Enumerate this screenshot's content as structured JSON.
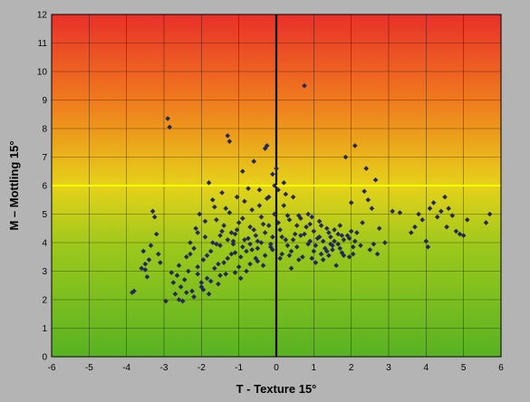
{
  "chart_data": {
    "type": "scatter",
    "xlabel": "T - Texture 15°",
    "ylabel": "M – Mottling 15°",
    "xlim": [
      -6,
      6
    ],
    "ylim": [
      0,
      12
    ],
    "x_ticks": [
      "-6",
      "-5",
      "-4",
      "-3",
      "-2",
      "-1",
      "0",
      "1",
      "2",
      "3",
      "4",
      "5",
      "6"
    ],
    "y_ticks": [
      "0",
      "1",
      "2",
      "3",
      "4",
      "5",
      "6",
      "7",
      "8",
      "9",
      "10",
      "11",
      "12"
    ],
    "grid": true,
    "threshold_line": {
      "axis": "y",
      "value": 6,
      "color": "#ffff00"
    },
    "vertical_line": {
      "axis": "x",
      "value": 0,
      "color": "#000000"
    },
    "background_gradient": [
      "#e8302a",
      "#f07a1e",
      "#e6d21a",
      "#9cc81c",
      "#58b223"
    ],
    "marker": {
      "shape": "diamond",
      "color": "#22285a"
    },
    "series": [
      {
        "points": [
          [
            -3.85,
            2.25
          ],
          [
            -3.8,
            2.3
          ],
          [
            -3.6,
            3.1
          ],
          [
            -3.55,
            3.7
          ],
          [
            -3.5,
            3.25
          ],
          [
            -3.45,
            2.8
          ],
          [
            -3.4,
            3.4
          ],
          [
            -3.35,
            3.9
          ],
          [
            -3.3,
            5.1
          ],
          [
            -3.25,
            4.9
          ],
          [
            -3.2,
            4.3
          ],
          [
            -3.15,
            3.6
          ],
          [
            -3.1,
            3.3
          ],
          [
            -3.5,
            3.05
          ],
          [
            -2.9,
            8.35
          ],
          [
            -2.85,
            8.05
          ],
          [
            -2.95,
            1.95
          ],
          [
            -2.8,
            2.95
          ],
          [
            -2.75,
            2.6
          ],
          [
            -2.7,
            2.2
          ],
          [
            -2.65,
            2.85
          ],
          [
            -2.6,
            3.2
          ],
          [
            -2.55,
            2.45
          ],
          [
            -2.5,
            1.95
          ],
          [
            -2.45,
            2.7
          ],
          [
            -2.4,
            3.5
          ],
          [
            -2.35,
            3.0
          ],
          [
            -2.3,
            4.0
          ],
          [
            -2.25,
            2.3
          ],
          [
            -2.2,
            3.8
          ],
          [
            -2.15,
            4.5
          ],
          [
            -2.1,
            2.9
          ],
          [
            -2.05,
            5.0
          ],
          [
            -2.0,
            2.6
          ],
          [
            -1.95,
            3.4
          ],
          [
            -1.9,
            4.2
          ],
          [
            -1.85,
            2.75
          ],
          [
            -1.8,
            6.1
          ],
          [
            -1.75,
            3.7
          ],
          [
            -1.7,
            5.5
          ],
          [
            -1.65,
            3.1
          ],
          [
            -1.6,
            4.8
          ],
          [
            -1.55,
            2.55
          ],
          [
            -1.5,
            3.9
          ],
          [
            -1.45,
            4.4
          ],
          [
            -1.4,
            3.3
          ],
          [
            -1.35,
            5.2
          ],
          [
            -1.3,
            7.75
          ],
          [
            -1.25,
            7.55
          ],
          [
            -1.2,
            3.6
          ],
          [
            -1.15,
            4.05
          ],
          [
            -1.1,
            2.95
          ],
          [
            -1.05,
            5.6
          ],
          [
            -1.0,
            4.7
          ],
          [
            -0.95,
            3.5
          ],
          [
            -0.9,
            6.5
          ],
          [
            -0.85,
            4.1
          ],
          [
            -0.8,
            3.0
          ],
          [
            -0.75,
            5.9
          ],
          [
            -0.7,
            4.55
          ],
          [
            -0.65,
            3.75
          ],
          [
            -0.6,
            6.85
          ],
          [
            -0.55,
            4.25
          ],
          [
            -0.5,
            3.35
          ],
          [
            -0.45,
            5.3
          ],
          [
            -0.4,
            4.0
          ],
          [
            -0.35,
            3.2
          ],
          [
            -0.3,
            7.3
          ],
          [
            -0.25,
            7.4
          ],
          [
            -0.2,
            4.6
          ],
          [
            -0.15,
            3.85
          ],
          [
            -0.1,
            6.4
          ],
          [
            -0.05,
            5.0
          ],
          [
            -2.1,
            3.15
          ],
          [
            -1.95,
            2.35
          ],
          [
            -1.85,
            3.55
          ],
          [
            -1.6,
            3.95
          ],
          [
            -1.5,
            2.85
          ],
          [
            -1.4,
            4.6
          ],
          [
            -1.3,
            3.45
          ],
          [
            -1.2,
            4.35
          ],
          [
            -1.1,
            3.65
          ],
          [
            -1.0,
            3.15
          ],
          [
            -0.9,
            4.85
          ],
          [
            -0.8,
            3.7
          ],
          [
            -0.7,
            3.25
          ],
          [
            -0.6,
            4.45
          ],
          [
            -0.5,
            3.8
          ],
          [
            -0.4,
            4.9
          ],
          [
            -0.3,
            3.55
          ],
          [
            -0.2,
            5.6
          ],
          [
            -0.1,
            4.2
          ],
          [
            -1.75,
            2.65
          ],
          [
            -1.55,
            3.25
          ],
          [
            -1.35,
            2.9
          ],
          [
            -1.15,
            3.95
          ],
          [
            -0.95,
            2.75
          ],
          [
            -0.75,
            4.15
          ],
          [
            -0.55,
            3.45
          ],
          [
            -0.35,
            4.65
          ],
          [
            -0.15,
            3.95
          ],
          [
            -2.6,
            2.0
          ],
          [
            -2.4,
            2.25
          ],
          [
            -2.2,
            2.1
          ],
          [
            -2.0,
            2.45
          ],
          [
            -1.8,
            2.2
          ],
          [
            -1.65,
            5.25
          ],
          [
            -1.45,
            5.75
          ],
          [
            -1.25,
            5.05
          ],
          [
            -1.05,
            4.45
          ],
          [
            -0.85,
            5.45
          ],
          [
            -0.65,
            5.15
          ],
          [
            -0.45,
            5.85
          ],
          [
            -0.25,
            5.55
          ],
          [
            -0.05,
            6.0
          ],
          [
            -2.3,
            3.6
          ],
          [
            -2.1,
            4.35
          ],
          [
            -1.9,
            4.75
          ],
          [
            -1.7,
            4.0
          ],
          [
            -1.5,
            4.25
          ],
          [
            -1.3,
            4.1
          ],
          [
            -1.1,
            4.3
          ],
          [
            -0.9,
            3.85
          ],
          [
            -0.7,
            3.95
          ],
          [
            -0.5,
            4.05
          ],
          [
            -0.3,
            4.35
          ],
          [
            -0.1,
            3.75
          ],
          [
            0.0,
            6.6
          ],
          [
            0.05,
            5.85
          ],
          [
            0.1,
            4.45
          ],
          [
            0.15,
            3.6
          ],
          [
            0.2,
            5.3
          ],
          [
            0.25,
            4.1
          ],
          [
            0.3,
            3.9
          ],
          [
            0.35,
            4.8
          ],
          [
            0.4,
            3.7
          ],
          [
            0.45,
            5.6
          ],
          [
            0.5,
            4.3
          ],
          [
            0.55,
            3.85
          ],
          [
            0.6,
            4.95
          ],
          [
            0.65,
            4.25
          ],
          [
            0.7,
            3.5
          ],
          [
            0.75,
            9.5
          ],
          [
            0.8,
            4.55
          ],
          [
            0.85,
            3.95
          ],
          [
            0.9,
            4.65
          ],
          [
            0.95,
            3.45
          ],
          [
            1.0,
            4.4
          ],
          [
            1.05,
            3.3
          ],
          [
            1.1,
            4.15
          ],
          [
            1.15,
            4.75
          ],
          [
            1.2,
            3.6
          ],
          [
            1.25,
            4.05
          ],
          [
            1.3,
            3.8
          ],
          [
            1.35,
            4.5
          ],
          [
            1.4,
            3.55
          ],
          [
            1.45,
            4.2
          ],
          [
            1.5,
            3.9
          ],
          [
            1.55,
            4.45
          ],
          [
            1.6,
            3.2
          ],
          [
            1.65,
            4.3
          ],
          [
            1.7,
            4.6
          ],
          [
            1.75,
            3.65
          ],
          [
            1.8,
            4.1
          ],
          [
            1.85,
            7.0
          ],
          [
            1.9,
            4.25
          ],
          [
            1.95,
            3.5
          ],
          [
            2.0,
            5.4
          ],
          [
            2.05,
            3.85
          ],
          [
            2.1,
            7.4
          ],
          [
            2.15,
            4.35
          ],
          [
            2.25,
            3.9
          ],
          [
            2.35,
            5.8
          ],
          [
            2.4,
            6.6
          ],
          [
            2.45,
            5.5
          ],
          [
            2.5,
            3.75
          ],
          [
            2.55,
            5.2
          ],
          [
            2.6,
            3.95
          ],
          [
            2.65,
            6.2
          ],
          [
            2.7,
            3.6
          ],
          [
            2.75,
            4.5
          ],
          [
            2.9,
            4.0
          ],
          [
            3.1,
            5.1
          ],
          [
            3.3,
            5.05
          ],
          [
            3.6,
            4.35
          ],
          [
            3.7,
            4.55
          ],
          [
            3.8,
            5.0
          ],
          [
            3.9,
            4.8
          ],
          [
            4.0,
            4.05
          ],
          [
            4.05,
            3.85
          ],
          [
            4.1,
            5.2
          ],
          [
            4.2,
            5.4
          ],
          [
            4.3,
            4.9
          ],
          [
            4.4,
            5.1
          ],
          [
            4.5,
            5.6
          ],
          [
            4.55,
            4.55
          ],
          [
            4.6,
            5.2
          ],
          [
            4.7,
            4.95
          ],
          [
            4.8,
            4.4
          ],
          [
            4.9,
            4.3
          ],
          [
            5.0,
            4.25
          ],
          [
            5.1,
            4.8
          ],
          [
            5.6,
            4.7
          ],
          [
            5.7,
            5.0
          ],
          [
            0.3,
            4.95
          ],
          [
            0.6,
            3.4
          ],
          [
            0.9,
            4.05
          ],
          [
            1.2,
            4.6
          ],
          [
            1.5,
            3.75
          ],
          [
            1.8,
            3.55
          ],
          [
            2.1,
            4.05
          ],
          [
            2.3,
            4.7
          ],
          [
            0.2,
            6.1
          ],
          [
            0.45,
            4.1
          ],
          [
            0.75,
            4.3
          ],
          [
            1.05,
            3.9
          ],
          [
            1.35,
            3.7
          ],
          [
            1.65,
            3.95
          ],
          [
            1.95,
            4.15
          ],
          [
            0.1,
            3.45
          ],
          [
            0.4,
            3.1
          ],
          [
            0.05,
            4.7
          ],
          [
            0.65,
            4.85
          ],
          [
            1.0,
            3.7
          ],
          [
            1.4,
            4.35
          ],
          [
            1.7,
            3.8
          ],
          [
            2.0,
            4.4
          ],
          [
            0.25,
            5.7
          ],
          [
            0.55,
            4.6
          ],
          [
            0.85,
            5.0
          ],
          [
            1.15,
            4.2
          ],
          [
            1.45,
            3.95
          ],
          [
            1.75,
            4.25
          ],
          [
            2.05,
            3.6
          ],
          [
            0.15,
            4.2
          ],
          [
            0.35,
            3.55
          ],
          [
            0.95,
            4.9
          ],
          [
            1.25,
            3.4
          ],
          [
            1.55,
            4.05
          ]
        ]
      }
    ]
  }
}
